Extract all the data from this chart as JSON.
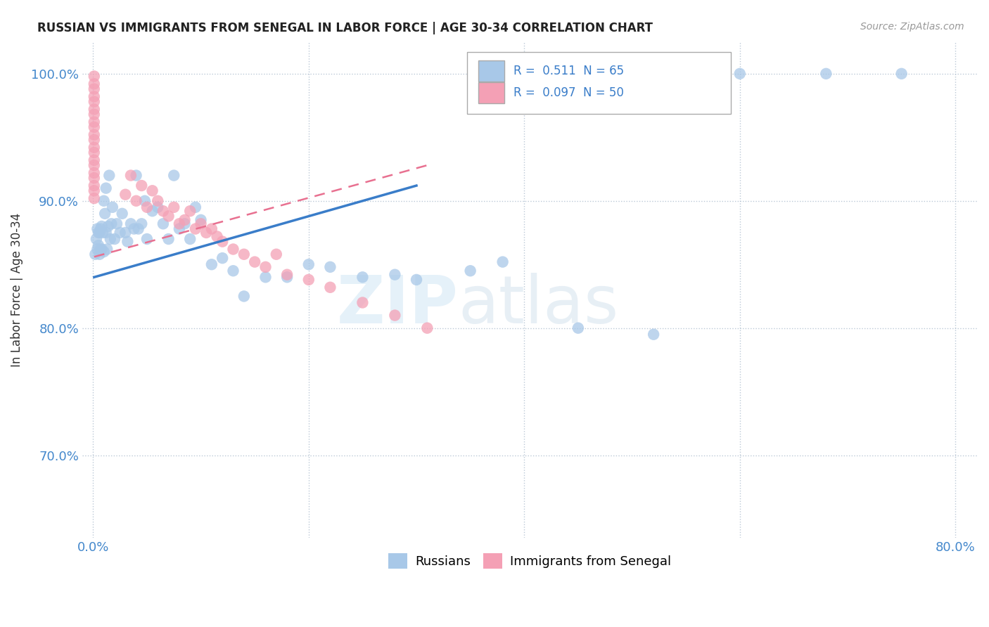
{
  "title": "RUSSIAN VS IMMIGRANTS FROM SENEGAL IN LABOR FORCE | AGE 30-34 CORRELATION CHART",
  "source": "Source: ZipAtlas.com",
  "ylabel": "In Labor Force | Age 30-34",
  "xlim": [
    -0.01,
    0.82
  ],
  "ylim": [
    0.635,
    1.025
  ],
  "xticks": [
    0.0,
    0.2,
    0.4,
    0.6,
    0.8
  ],
  "xticklabels": [
    "0.0%",
    "",
    "",
    "",
    "80.0%"
  ],
  "yticks": [
    0.7,
    0.8,
    0.9,
    1.0
  ],
  "yticklabels": [
    "70.0%",
    "80.0%",
    "90.0%",
    "100.0%"
  ],
  "r_russian": 0.511,
  "n_russian": 65,
  "r_senegal": 0.097,
  "n_senegal": 50,
  "russian_color": "#A8C8E8",
  "senegal_color": "#F4A0B5",
  "trend_russian_color": "#3A7DC9",
  "trend_senegal_color": "#E87090",
  "watermark_zip": "ZIP",
  "watermark_atlas": "atlas",
  "russian_x": [
    0.002,
    0.003,
    0.004,
    0.004,
    0.005,
    0.005,
    0.006,
    0.006,
    0.007,
    0.007,
    0.008,
    0.008,
    0.009,
    0.01,
    0.01,
    0.011,
    0.012,
    0.012,
    0.013,
    0.014,
    0.015,
    0.016,
    0.017,
    0.018,
    0.02,
    0.022,
    0.025,
    0.027,
    0.03,
    0.032,
    0.035,
    0.038,
    0.04,
    0.042,
    0.045,
    0.048,
    0.05,
    0.055,
    0.06,
    0.065,
    0.07,
    0.075,
    0.08,
    0.085,
    0.09,
    0.095,
    0.1,
    0.11,
    0.12,
    0.13,
    0.14,
    0.16,
    0.18,
    0.2,
    0.22,
    0.25,
    0.28,
    0.3,
    0.35,
    0.38,
    0.45,
    0.52,
    0.6,
    0.68,
    0.75
  ],
  "russian_y": [
    0.858,
    0.87,
    0.862,
    0.878,
    0.865,
    0.875,
    0.858,
    0.875,
    0.862,
    0.878,
    0.88,
    0.862,
    0.875,
    0.9,
    0.86,
    0.89,
    0.875,
    0.91,
    0.862,
    0.88,
    0.92,
    0.87,
    0.882,
    0.895,
    0.87,
    0.882,
    0.875,
    0.89,
    0.875,
    0.868,
    0.882,
    0.878,
    0.92,
    0.878,
    0.882,
    0.9,
    0.87,
    0.892,
    0.895,
    0.882,
    0.87,
    0.92,
    0.878,
    0.882,
    0.87,
    0.895,
    0.885,
    0.85,
    0.855,
    0.845,
    0.825,
    0.84,
    0.84,
    0.85,
    0.848,
    0.84,
    0.842,
    0.838,
    0.845,
    0.852,
    0.8,
    0.795,
    1.0,
    1.0,
    1.0
  ],
  "senegal_x": [
    0.001,
    0.001,
    0.001,
    0.001,
    0.001,
    0.001,
    0.001,
    0.001,
    0.001,
    0.001,
    0.001,
    0.001,
    0.001,
    0.001,
    0.001,
    0.001,
    0.001,
    0.001,
    0.001,
    0.001,
    0.03,
    0.035,
    0.04,
    0.045,
    0.05,
    0.055,
    0.06,
    0.065,
    0.07,
    0.075,
    0.08,
    0.085,
    0.09,
    0.095,
    0.1,
    0.105,
    0.11,
    0.115,
    0.12,
    0.13,
    0.14,
    0.15,
    0.16,
    0.17,
    0.18,
    0.2,
    0.22,
    0.25,
    0.28,
    0.31
  ],
  "senegal_y": [
    0.998,
    0.992,
    0.988,
    0.982,
    0.978,
    0.972,
    0.968,
    0.962,
    0.958,
    0.952,
    0.948,
    0.942,
    0.938,
    0.932,
    0.928,
    0.922,
    0.918,
    0.912,
    0.908,
    0.902,
    0.905,
    0.92,
    0.9,
    0.912,
    0.895,
    0.908,
    0.9,
    0.892,
    0.888,
    0.895,
    0.882,
    0.885,
    0.892,
    0.878,
    0.882,
    0.875,
    0.878,
    0.872,
    0.868,
    0.862,
    0.858,
    0.852,
    0.848,
    0.858,
    0.842,
    0.838,
    0.832,
    0.82,
    0.81,
    0.8
  ],
  "trend_russian_x0": 0.001,
  "trend_russian_y0": 0.84,
  "trend_russian_x1": 0.3,
  "trend_russian_y1": 0.912,
  "trend_senegal_x0": 0.001,
  "trend_senegal_y0": 0.856,
  "trend_senegal_x1": 0.31,
  "trend_senegal_y1": 0.928
}
